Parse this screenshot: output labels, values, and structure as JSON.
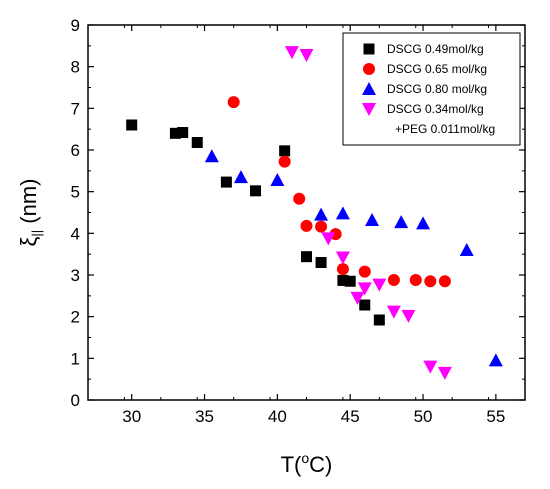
{
  "chart_data": {
    "type": "scatter",
    "xlabel": "T(",
    "xlabel_sup": "o",
    "xlabel_end": "C)",
    "ylabel": "ξ",
    "ylabel_sub": "||",
    "ylabel_end": " (nm)",
    "xlim": [
      27,
      57
    ],
    "ylim": [
      0,
      9
    ],
    "xticks": [
      30,
      35,
      40,
      45,
      50,
      55
    ],
    "yticks": [
      0,
      1,
      2,
      3,
      4,
      5,
      6,
      7,
      8,
      9
    ],
    "grid": false,
    "legend_position": "top-right",
    "series": [
      {
        "name": "DSCG 0.49mol/kg",
        "marker": "square",
        "color": "#000000",
        "points": [
          [
            30,
            6.6
          ],
          [
            33,
            6.4
          ],
          [
            33.5,
            6.42
          ],
          [
            34.5,
            6.18
          ],
          [
            36.5,
            5.23
          ],
          [
            38.5,
            5.02
          ],
          [
            40.5,
            5.98
          ],
          [
            42,
            3.44
          ],
          [
            43,
            3.3
          ],
          [
            44.5,
            2.87
          ],
          [
            45,
            2.85
          ],
          [
            46,
            2.28
          ],
          [
            47,
            1.92
          ]
        ]
      },
      {
        "name": "DSCG 0.65 mol/kg",
        "marker": "circle",
        "color": "#ff0000",
        "points": [
          [
            37,
            7.15
          ],
          [
            40.5,
            5.72
          ],
          [
            41.5,
            4.83
          ],
          [
            42,
            4.18
          ],
          [
            43,
            4.16
          ],
          [
            44,
            3.98
          ],
          [
            44.5,
            3.14
          ],
          [
            46,
            3.08
          ],
          [
            48,
            2.88
          ],
          [
            49.5,
            2.88
          ],
          [
            50.5,
            2.85
          ],
          [
            51.5,
            2.85
          ]
        ]
      },
      {
        "name": "DSCG 0.80 mol/kg",
        "marker": "triangle-up",
        "color": "#0000ff",
        "points": [
          [
            35.5,
            5.85
          ],
          [
            37.5,
            5.35
          ],
          [
            40,
            5.28
          ],
          [
            43,
            4.45
          ],
          [
            44.5,
            4.48
          ],
          [
            46.5,
            4.32
          ],
          [
            48.5,
            4.27
          ],
          [
            50,
            4.24
          ],
          [
            53,
            3.6
          ],
          [
            55,
            0.95
          ]
        ]
      },
      {
        "name": "DSCG 0.34mol/kg",
        "name_line2": "+PEG 0.011mol/kg",
        "marker": "triangle-down",
        "color": "#ff00ff",
        "points": [
          [
            41,
            8.35
          ],
          [
            42,
            8.28
          ],
          [
            43.5,
            3.88
          ],
          [
            44.5,
            3.42
          ],
          [
            45.5,
            2.45
          ],
          [
            46,
            2.68
          ],
          [
            47,
            2.77
          ],
          [
            48,
            2.12
          ],
          [
            49,
            2.02
          ],
          [
            50.5,
            0.8
          ],
          [
            51.5,
            0.65
          ]
        ]
      }
    ]
  }
}
